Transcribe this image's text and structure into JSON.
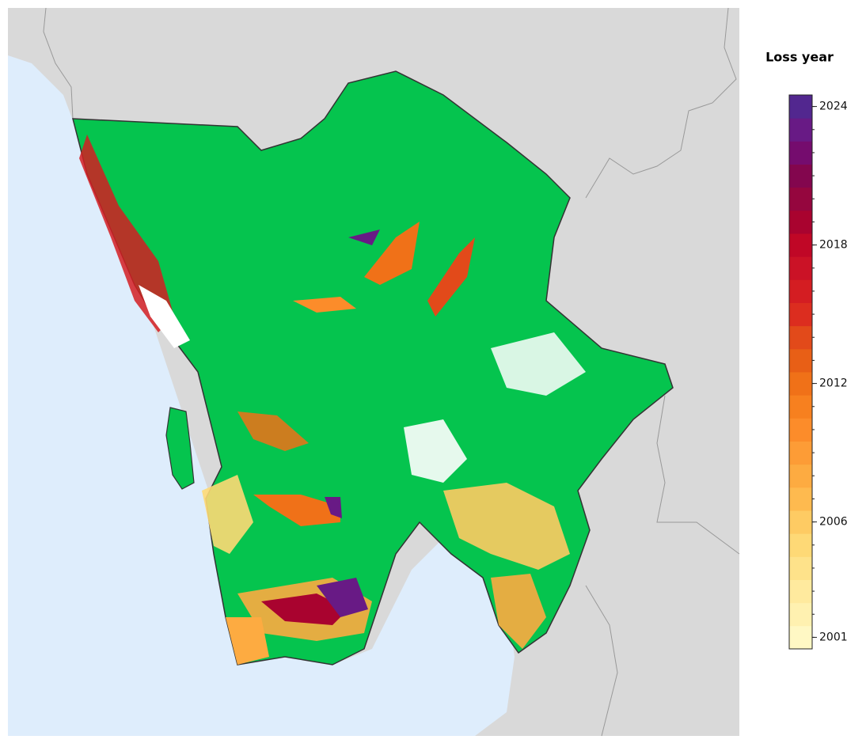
{
  "map": {
    "legend": {
      "title": "Loss year",
      "lim": [
        2000.5,
        2024.5
      ],
      "ticks": [
        2001,
        2006,
        2012,
        2018,
        2024
      ],
      "minor_ticks": [
        2001,
        2002,
        2003,
        2004,
        2005,
        2006,
        2007,
        2008,
        2009,
        2010,
        2011,
        2012,
        2013,
        2014,
        2015,
        2016,
        2017,
        2018,
        2019,
        2020,
        2021,
        2022,
        2023,
        2024
      ],
      "colors": [
        "#fff8c4",
        "#fff1b0",
        "#ffea9e",
        "#fee28a",
        "#fed976",
        "#fecb63",
        "#feba4f",
        "#fdab41",
        "#fd9c36",
        "#fc8c2a",
        "#f7801f",
        "#f07118",
        "#e85f16",
        "#e24a1a",
        "#dc2d1f",
        "#d41d22",
        "#cb1226",
        "#c00726",
        "#a9032f",
        "#95063e",
        "#83064e",
        "#750c6e",
        "#681a85",
        "#52278f"
      ]
    }
  }
}
